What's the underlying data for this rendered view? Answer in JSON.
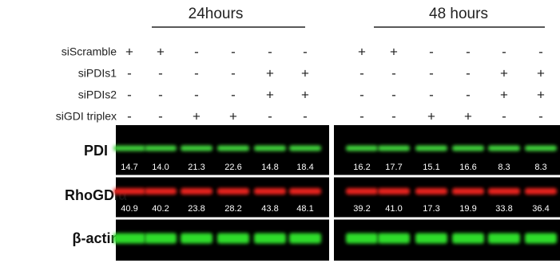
{
  "header": {
    "left": "24hours",
    "right": "48 hours"
  },
  "treatments": [
    {
      "label": "siScramble",
      "signs": [
        "+",
        "+",
        "-",
        "-",
        "-",
        "-",
        "+",
        "+",
        "-",
        "-",
        "-",
        "-"
      ]
    },
    {
      "label": "siPDIs1",
      "signs": [
        "-",
        "-",
        "-",
        "-",
        "+",
        "+",
        "-",
        "-",
        "-",
        "-",
        "+",
        "+"
      ]
    },
    {
      "label": "siPDIs2",
      "signs": [
        "-",
        "-",
        "-",
        "-",
        "+",
        "+",
        "-",
        "-",
        "-",
        "-",
        "+",
        "+"
      ]
    },
    {
      "label": "siGDI triplex",
      "signs": [
        "-",
        "-",
        "+",
        "+",
        "-",
        "-",
        "-",
        "-",
        "+",
        "+",
        "-",
        "-"
      ]
    }
  ],
  "blots": [
    {
      "label": "PDI",
      "values": [
        "14.7",
        "14.0",
        "21.3",
        "22.6",
        "14.8",
        "18.4",
        "16.2",
        "17.7",
        "15.1",
        "16.6",
        "8.3",
        "8.3"
      ]
    },
    {
      "label": "RhoGDIα",
      "values": [
        "40.9",
        "40.2",
        "23.8",
        "28.2",
        "43.8",
        "48.1",
        "39.2",
        "41.0",
        "17.3",
        "19.9",
        "33.8",
        "36.4"
      ]
    },
    {
      "label": "β-actin"
    }
  ]
}
